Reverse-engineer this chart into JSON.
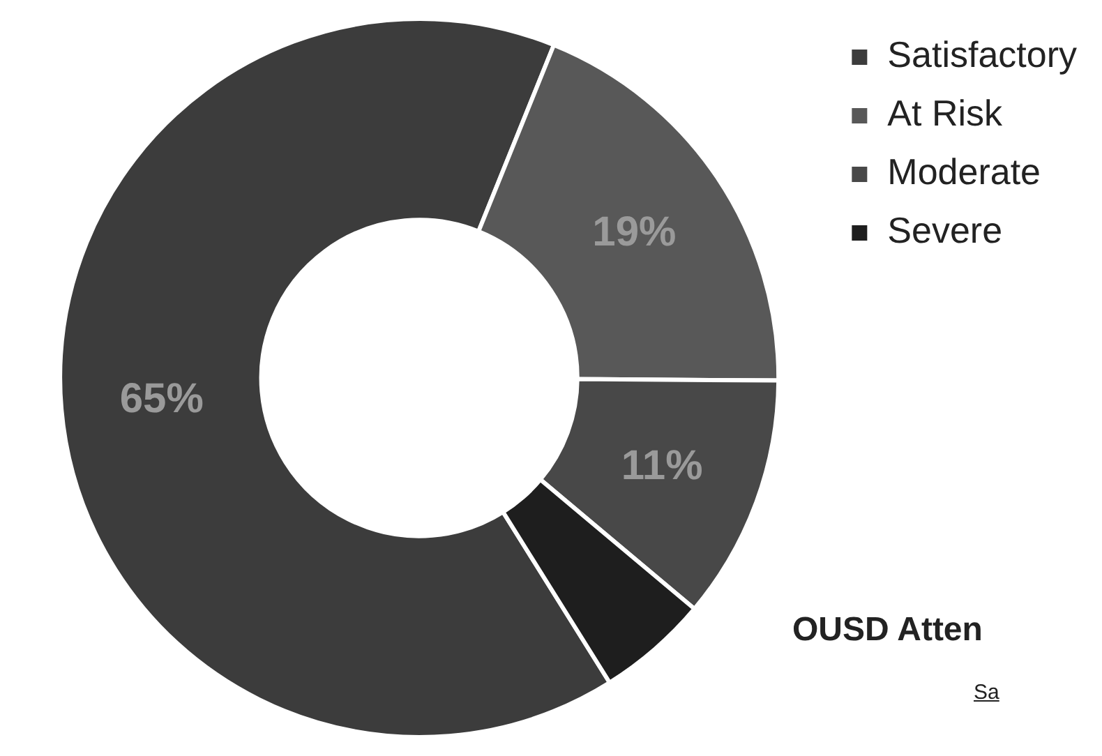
{
  "chart_data": {
    "type": "donut",
    "categories": [
      "Satisfactory",
      "At Risk",
      "Moderate",
      "Severe"
    ],
    "values": [
      65,
      19,
      11,
      5
    ],
    "colors": [
      "#3c3c3c",
      "#585858",
      "#484848",
      "#1e1e1e"
    ],
    "value_labels": [
      "65%",
      "19%",
      "11%",
      null
    ],
    "legend": "top right",
    "annotations": [
      "OUSD Atten",
      "Sa"
    ]
  }
}
